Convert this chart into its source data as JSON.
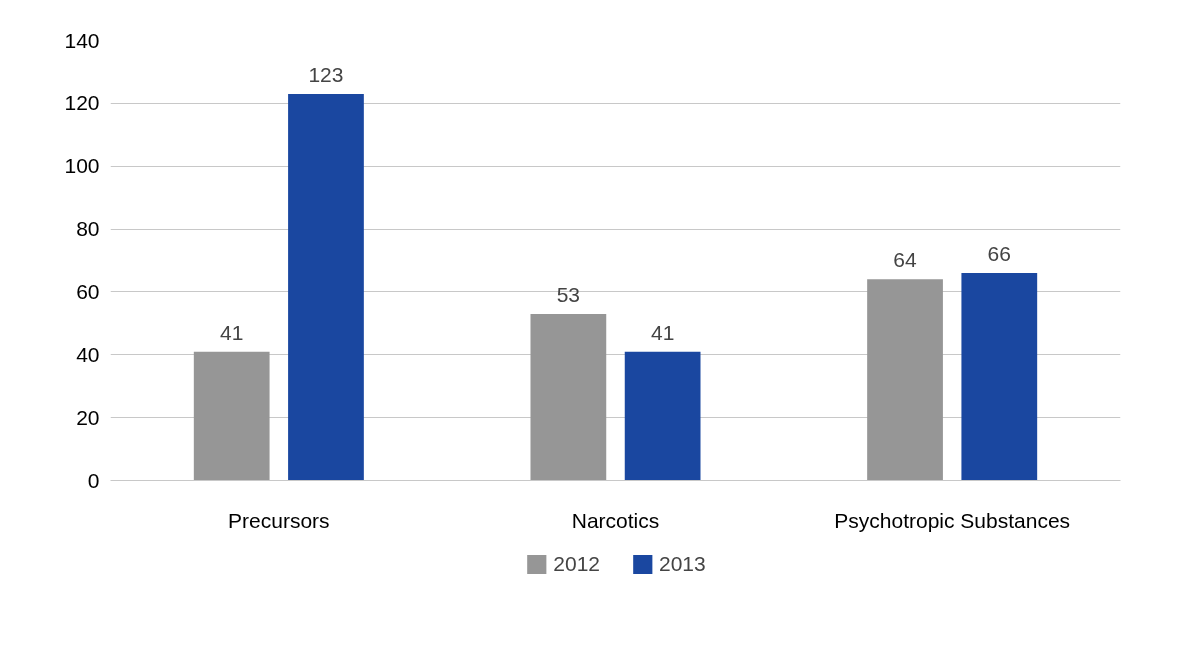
{
  "chart_data": {
    "type": "bar",
    "categories": [
      "Precursors",
      "Narcotics",
      "Psychotropic Substances"
    ],
    "series": [
      {
        "name": "2012",
        "color": "#969696",
        "values": [
          41,
          53,
          64
        ]
      },
      {
        "name": "2013",
        "color": "#1a47a0",
        "values": [
          123,
          41,
          66
        ]
      }
    ],
    "ylim": [
      0,
      140
    ],
    "yticks": [
      0,
      20,
      40,
      60,
      80,
      100,
      120,
      140
    ],
    "grid": "y",
    "legend": "bottom",
    "data_labels": true
  }
}
